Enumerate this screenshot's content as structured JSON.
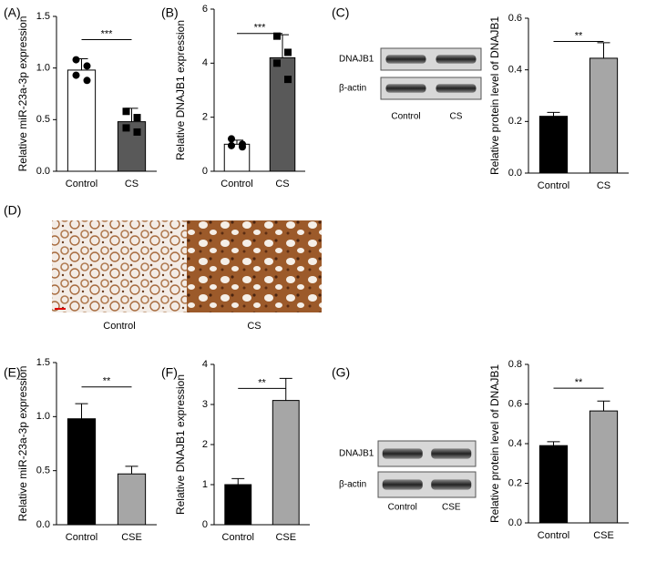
{
  "chart_data": [
    {
      "type": "bar",
      "panel_label": "(A)",
      "ylabel": "Relative miR-23a-3p expression",
      "categories": [
        "Control",
        "CS"
      ],
      "values": [
        0.98,
        0.48
      ],
      "errors": [
        0.11,
        0.13
      ],
      "colors": [
        "#ffffff",
        "#595959"
      ],
      "points": [
        [
          1.08,
          1.02,
          0.93,
          0.88
        ],
        [
          0.58,
          0.52,
          0.42,
          0.38
        ]
      ],
      "point_markers": [
        "circle",
        "square"
      ],
      "ylim": [
        0,
        1.5
      ],
      "yticks": [
        {
          "value": 0,
          "label": "0.0"
        },
        {
          "value": 0.5,
          "label": "0.5"
        },
        {
          "value": 1,
          "label": "1.0"
        },
        {
          "value": 1.5,
          "label": "1.5"
        }
      ],
      "annotation": "***"
    },
    {
      "type": "bar",
      "panel_label": "(B)",
      "ylabel": "Relative DNAJB1 expression",
      "categories": [
        "Control",
        "CS"
      ],
      "values": [
        1.0,
        4.2
      ],
      "errors": [
        0.15,
        0.85
      ],
      "colors": [
        "#ffffff",
        "#595959"
      ],
      "points": [
        [
          1.2,
          1.0,
          0.95,
          0.9
        ],
        [
          5.0,
          4.4,
          4.0,
          3.4
        ]
      ],
      "point_markers": [
        "circle",
        "square"
      ],
      "ylim": [
        0,
        6
      ],
      "yticks": [
        0,
        2,
        4,
        6
      ],
      "annotation": "***"
    },
    {
      "type": "bar",
      "panel_label": "(C)",
      "ylabel": "Relative protein level  of DNAJB1",
      "categories": [
        "Control",
        "CS"
      ],
      "values": [
        0.22,
        0.445
      ],
      "errors": [
        0.015,
        0.06
      ],
      "colors": [
        "#000000",
        "#a6a6a6"
      ],
      "ylim": [
        0,
        0.6
      ],
      "yticks": [
        {
          "value": 0,
          "label": "0.0"
        },
        {
          "value": 0.2,
          "label": "0.2"
        },
        {
          "value": 0.4,
          "label": "0.4"
        },
        {
          "value": 0.6,
          "label": "0.6"
        }
      ],
      "annotation": "**",
      "blot": {
        "rows": [
          "DNAJB1",
          "β-actin"
        ],
        "lanes": [
          "Control",
          "CS"
        ]
      }
    },
    {
      "type": "bar",
      "panel_label": "(E)",
      "ylabel": "Relative miR-23a-3p expression",
      "categories": [
        "Control",
        "CSE"
      ],
      "values": [
        0.98,
        0.47
      ],
      "errors": [
        0.14,
        0.07
      ],
      "colors": [
        "#000000",
        "#a6a6a6"
      ],
      "ylim": [
        0,
        1.5
      ],
      "yticks": [
        {
          "value": 0,
          "label": "0.0"
        },
        {
          "value": 0.5,
          "label": "0.5"
        },
        {
          "value": 1,
          "label": "1.0"
        },
        {
          "value": 1.5,
          "label": "1.5"
        }
      ],
      "annotation": "**"
    },
    {
      "type": "bar",
      "panel_label": "(F)",
      "ylabel": "Relative DNAJB1 expression",
      "categories": [
        "Control",
        "CSE"
      ],
      "values": [
        1.0,
        3.1
      ],
      "errors": [
        0.15,
        0.55
      ],
      "colors": [
        "#000000",
        "#a6a6a6"
      ],
      "ylim": [
        0,
        4
      ],
      "yticks": [
        0,
        1,
        2,
        3,
        4
      ],
      "annotation": "**"
    },
    {
      "type": "bar",
      "panel_label": "(G)",
      "ylabel": "Relative protein level  of DNAJB1",
      "categories": [
        "Control",
        "CSE"
      ],
      "values": [
        0.39,
        0.565
      ],
      "errors": [
        0.02,
        0.05
      ],
      "colors": [
        "#000000",
        "#a6a6a6"
      ],
      "ylim": [
        0,
        0.8
      ],
      "yticks": [
        {
          "value": 0,
          "label": "0.0"
        },
        {
          "value": 0.2,
          "label": "0.2"
        },
        {
          "value": 0.4,
          "label": "0.4"
        },
        {
          "value": 0.6,
          "label": "0.6"
        },
        {
          "value": 0.8,
          "label": "0.8"
        }
      ],
      "annotation": "**",
      "blot": {
        "rows": [
          "DNAJB1",
          "β-actin"
        ],
        "lanes": [
          "Control",
          "CSE"
        ]
      }
    }
  ],
  "figure_d": {
    "panel_label": "(D)",
    "images": [
      "Control",
      "CS"
    ]
  }
}
